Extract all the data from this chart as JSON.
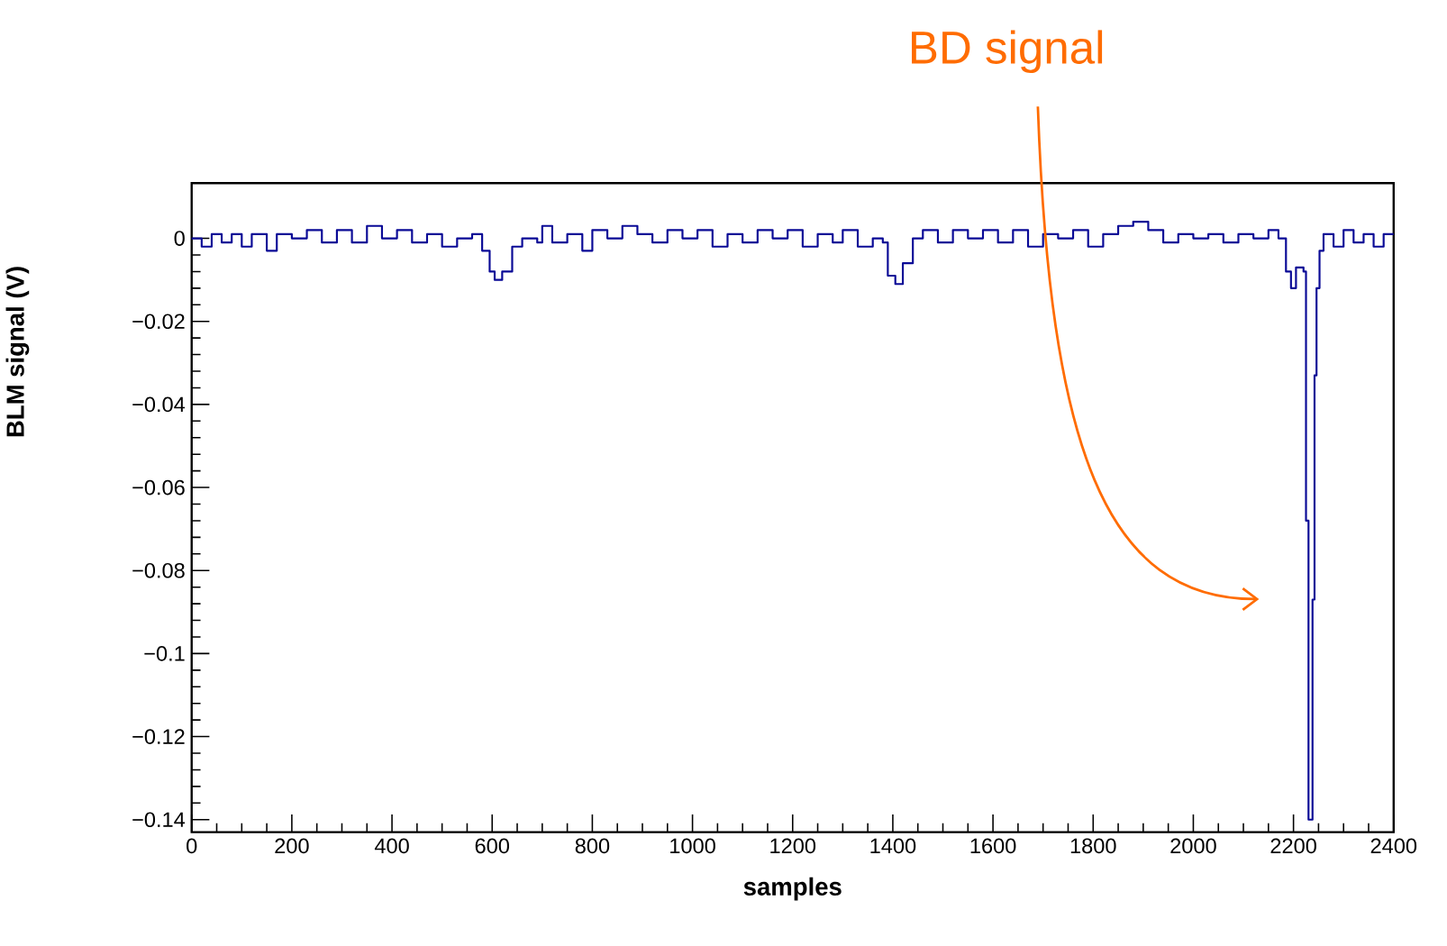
{
  "chart_data": {
    "type": "step",
    "xlabel": "samples",
    "ylabel": "BLM signal (V)",
    "annotations": [
      "BD signal"
    ],
    "xlim": [
      0,
      2400
    ],
    "ylim": [
      -0.143,
      0.0133
    ],
    "xticks": [
      0,
      200,
      400,
      600,
      800,
      1000,
      1200,
      1400,
      1600,
      1800,
      2000,
      2200,
      2400
    ],
    "yticks": [
      0,
      {
        "value": -0.02,
        "label": "−0.02"
      },
      {
        "value": -0.04,
        "label": "−0.04"
      },
      {
        "value": -0.06,
        "label": "−0.06"
      },
      {
        "value": -0.08,
        "label": "−0.08"
      },
      {
        "value": -0.1,
        "label": "−0.1"
      },
      {
        "value": -0.12,
        "label": "−0.12"
      },
      {
        "value": -0.14,
        "label": "−0.14"
      }
    ],
    "grid": false,
    "series": [
      {
        "color": "#0a0a96",
        "x": [
          0,
          20,
          40,
          60,
          80,
          100,
          120,
          150,
          170,
          200,
          230,
          260,
          290,
          320,
          350,
          380,
          410,
          440,
          470,
          500,
          530,
          560,
          580,
          595,
          605,
          620,
          640,
          660,
          690,
          700,
          720,
          750,
          780,
          800,
          830,
          860,
          890,
          920,
          950,
          980,
          1010,
          1040,
          1070,
          1100,
          1130,
          1160,
          1190,
          1220,
          1250,
          1280,
          1300,
          1330,
          1360,
          1380,
          1390,
          1405,
          1420,
          1440,
          1460,
          1490,
          1520,
          1550,
          1580,
          1610,
          1640,
          1670,
          1700,
          1730,
          1760,
          1790,
          1820,
          1850,
          1880,
          1910,
          1940,
          1970,
          2000,
          2030,
          2060,
          2090,
          2120,
          2150,
          2170,
          2185,
          2195,
          2205,
          2220,
          2225,
          2230,
          2235,
          2238,
          2242,
          2246,
          2252,
          2260,
          2280,
          2300,
          2320,
          2340,
          2360,
          2380,
          2400
        ],
        "values": [
          0,
          -0.002,
          0.001,
          -0.001,
          0.001,
          -0.002,
          0.001,
          -0.003,
          0.001,
          0.0,
          0.002,
          -0.001,
          0.002,
          -0.001,
          0.003,
          0.0,
          0.002,
          -0.001,
          0.001,
          -0.002,
          0.0,
          0.001,
          -0.003,
          -0.008,
          -0.01,
          -0.008,
          -0.002,
          0.0,
          -0.001,
          0.003,
          -0.001,
          0.001,
          -0.003,
          0.002,
          0.0,
          0.003,
          0.001,
          -0.001,
          0.002,
          0.0,
          0.002,
          -0.002,
          0.001,
          -0.001,
          0.002,
          0.0,
          0.002,
          -0.002,
          0.001,
          -0.001,
          0.002,
          -0.002,
          0.0,
          -0.001,
          -0.009,
          -0.011,
          -0.006,
          0.0,
          0.002,
          -0.001,
          0.002,
          0.0,
          0.002,
          -0.001,
          0.002,
          -0.002,
          0.001,
          0.0,
          0.002,
          -0.002,
          0.001,
          0.003,
          0.004,
          0.002,
          -0.001,
          0.001,
          0.0,
          0.001,
          -0.001,
          0.001,
          0.0,
          0.002,
          0.0,
          -0.008,
          -0.012,
          -0.007,
          -0.008,
          -0.068,
          -0.14,
          -0.14,
          -0.087,
          -0.033,
          -0.012,
          -0.003,
          0.001,
          -0.002,
          0.002,
          -0.001,
          0.001,
          -0.002,
          0.001,
          0.001
        ]
      }
    ]
  }
}
